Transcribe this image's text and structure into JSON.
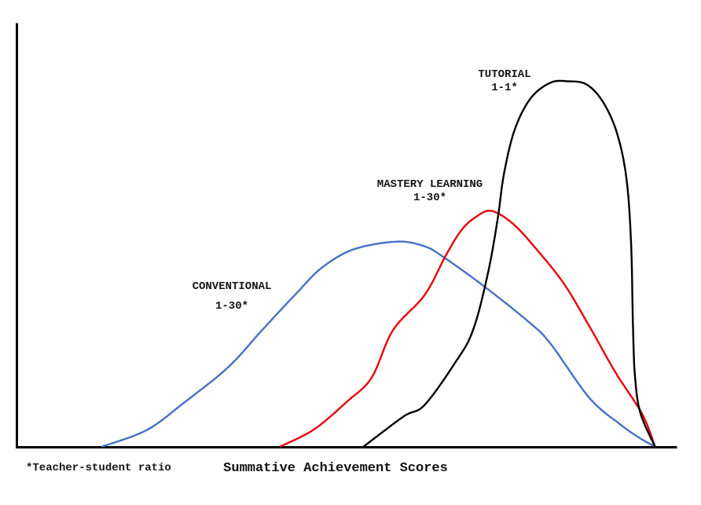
{
  "figure": {
    "background": "#ffffff",
    "axis_color": "#000000"
  },
  "chart_data": {
    "type": "line",
    "title": "",
    "xlabel": "Summative Achievement Scores",
    "ylabel": "",
    "footnote": "*Teacher-student ratio",
    "x_range": [
      0,
      100
    ],
    "y_range": [
      0,
      1.1
    ],
    "grid": false,
    "legend_position": "curve-annotations",
    "series": [
      {
        "name": "CONVENTIONAL",
        "ratio_label": "1-30*",
        "color": "#4472C4",
        "points": [
          [
            13.1,
            0
          ],
          [
            19.8,
            0.045
          ],
          [
            25.3,
            0.118
          ],
          [
            32.1,
            0.217
          ],
          [
            37.2,
            0.318
          ],
          [
            42.4,
            0.419
          ],
          [
            46.3,
            0.49
          ],
          [
            51.1,
            0.54
          ],
          [
            57.6,
            0.561
          ],
          [
            61.8,
            0.548
          ],
          [
            64.7,
            0.518
          ],
          [
            70.9,
            0.437
          ],
          [
            77.6,
            0.34
          ],
          [
            80.8,
            0.282
          ],
          [
            86.7,
            0.133
          ],
          [
            91.4,
            0.06
          ],
          [
            94.4,
            0.022
          ],
          [
            96.6,
            0
          ]
        ]
      },
      {
        "name": "MASTERY LEARNING",
        "ratio_label": "1-30*",
        "color": "#E8000B",
        "points": [
          [
            40.0,
            0
          ],
          [
            45.1,
            0.047
          ],
          [
            50.2,
            0.125
          ],
          [
            53.8,
            0.189
          ],
          [
            57.0,
            0.318
          ],
          [
            61.8,
            0.415
          ],
          [
            65.0,
            0.523
          ],
          [
            67.3,
            0.591
          ],
          [
            69.5,
            0.628
          ],
          [
            71.9,
            0.645
          ],
          [
            75.2,
            0.609
          ],
          [
            78.7,
            0.54
          ],
          [
            82.8,
            0.447
          ],
          [
            86.7,
            0.329
          ],
          [
            90.6,
            0.204
          ],
          [
            94.7,
            0.088
          ],
          [
            96.6,
            0
          ]
        ]
      },
      {
        "name": "TUTORIAL",
        "ratio_label": "1-1*",
        "color": "#000000",
        "points": [
          [
            52.6,
            0
          ],
          [
            58.6,
            0.082
          ],
          [
            61.8,
            0.114
          ],
          [
            66.5,
            0.232
          ],
          [
            69.1,
            0.318
          ],
          [
            71.3,
            0.469
          ],
          [
            72.8,
            0.619
          ],
          [
            73.8,
            0.748
          ],
          [
            75.4,
            0.867
          ],
          [
            77.8,
            0.953
          ],
          [
            80.8,
            0.996
          ],
          [
            83.5,
            1.0
          ],
          [
            86.3,
            0.991
          ],
          [
            88.8,
            0.942
          ],
          [
            90.9,
            0.856
          ],
          [
            92.3,
            0.733
          ],
          [
            93.0,
            0.555
          ],
          [
            93.3,
            0.318
          ],
          [
            93.6,
            0.189
          ],
          [
            94.4,
            0.092
          ],
          [
            96.6,
            0
          ]
        ]
      }
    ]
  }
}
